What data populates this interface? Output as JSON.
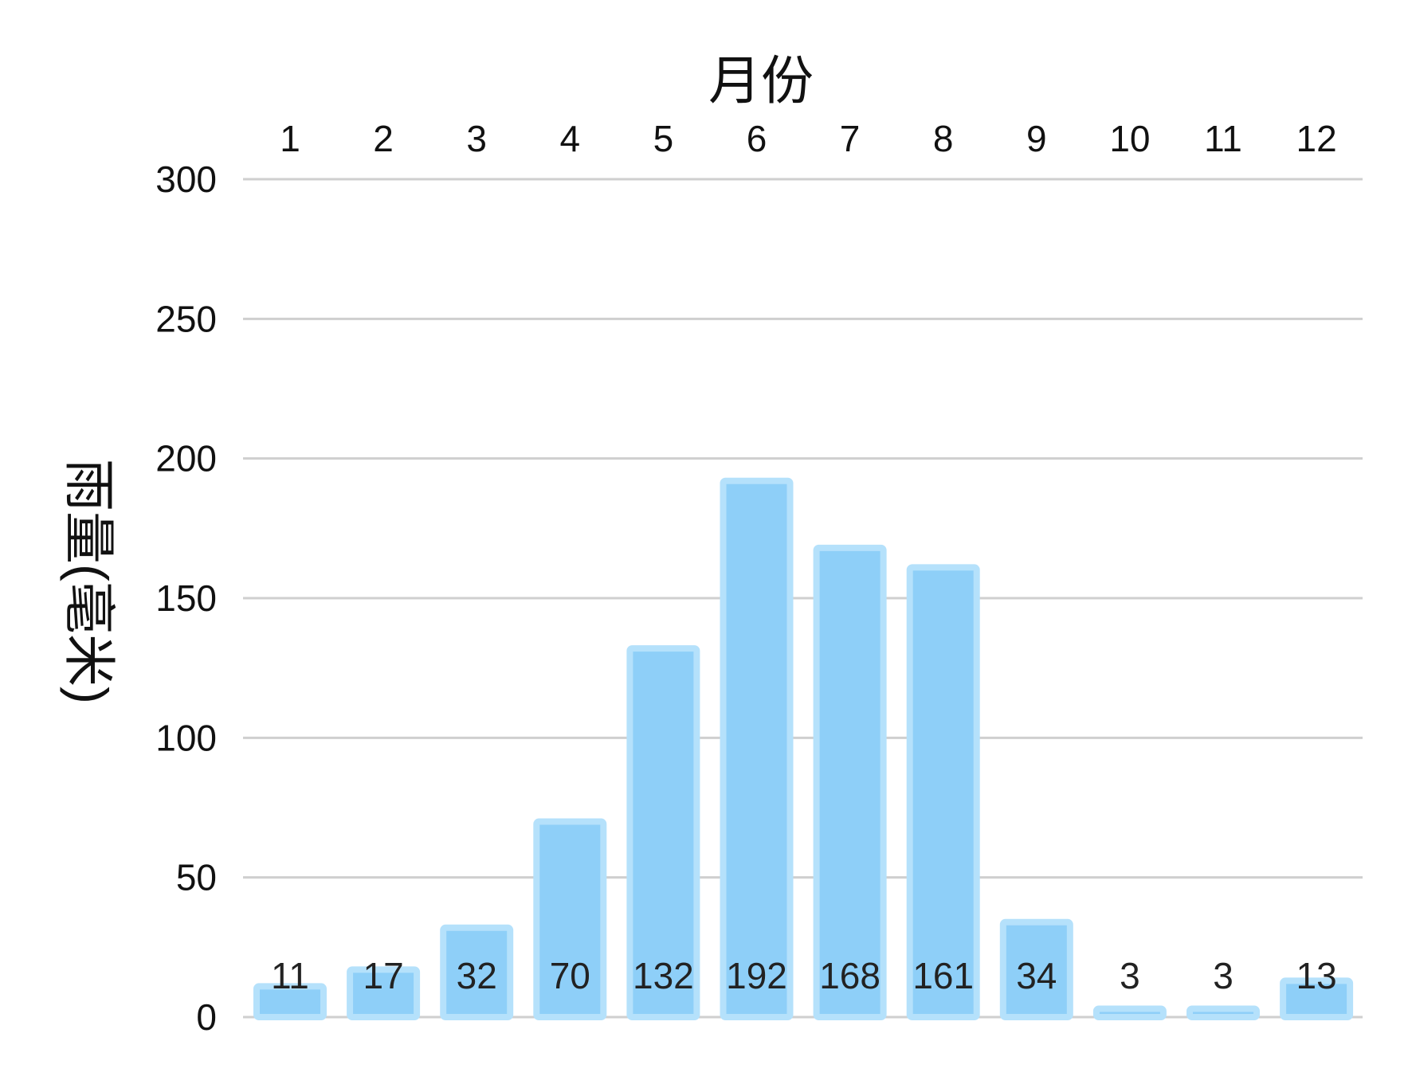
{
  "chart_data": {
    "type": "bar",
    "xlabel": "月份",
    "ylabel": "雨量(毫米)",
    "categories": [
      "1",
      "2",
      "3",
      "4",
      "5",
      "6",
      "7",
      "8",
      "9",
      "10",
      "11",
      "12"
    ],
    "values": [
      11,
      17,
      32,
      70,
      132,
      192,
      168,
      161,
      34,
      3,
      3,
      13
    ],
    "data_labels": [
      "11",
      "17",
      "32",
      "70",
      "132",
      "192",
      "168",
      "161",
      "34",
      "3",
      "3",
      "13"
    ],
    "ylim": [
      0,
      300
    ],
    "yticks": [
      0,
      50,
      100,
      150,
      200,
      250,
      300
    ],
    "x_axis_position": "top",
    "grid": true,
    "bar_color": "#8ecff8",
    "bar_border_color": "#b5e1fb"
  }
}
